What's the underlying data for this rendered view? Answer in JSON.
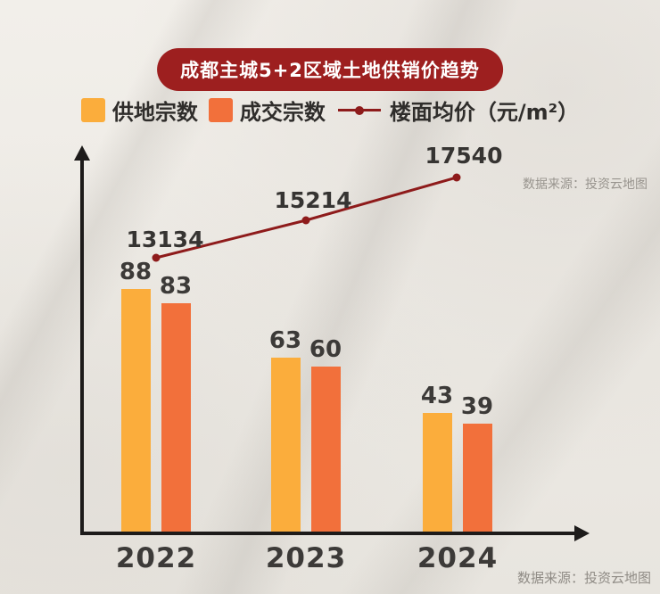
{
  "title": "成都主城5+2区域土地供销价趋势",
  "source_top": "数据来源：投资云地图",
  "source_bottom": "数据来源：投资云地图",
  "colors": {
    "title_bg": "#9D1F1F",
    "supply_bar": "#FBAD3C",
    "deal_bar": "#F2703B",
    "price_line": "#8E1B1B",
    "axis": "#1D1B1A",
    "text_dark": "#3C3A38",
    "source_text": "#97928C"
  },
  "chart_data": {
    "type": "bar+line",
    "title": "成都主城5+2区域土地供销价趋势",
    "categories": [
      "2022",
      "2023",
      "2024"
    ],
    "series": [
      {
        "name": "供地宗数",
        "type": "bar",
        "color": "#FBAD3C",
        "values": [
          88,
          63,
          43
        ]
      },
      {
        "name": "成交宗数",
        "type": "bar",
        "color": "#F2703B",
        "values": [
          83,
          60,
          39
        ]
      },
      {
        "name": "楼面均价（元/m²）",
        "type": "line",
        "color": "#8E1B1B",
        "values": [
          13134,
          15214,
          17540
        ]
      }
    ],
    "bar_ylim": [
      0,
      100
    ],
    "grid": false,
    "legend_position": "top",
    "xlabel": "",
    "ylabel": ""
  }
}
